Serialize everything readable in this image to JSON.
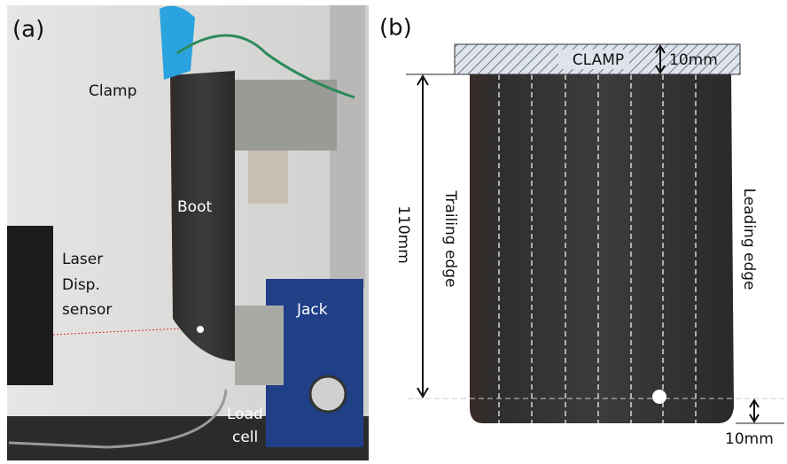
{
  "panel_a": {
    "label": "(a)",
    "clamp": "Clamp",
    "boot": "Boot",
    "laser": [
      "Laser",
      "Disp.",
      "sensor"
    ],
    "jack": "Jack",
    "load_cell": [
      "Load",
      "cell"
    ]
  },
  "panel_b": {
    "label": "(b)",
    "clamp": "CLAMP",
    "clamp_width": "10mm",
    "length": "110mm",
    "trailing_edge": "Trailing edge",
    "leading_edge": "Leading edge",
    "bottom_margin": "10mm"
  }
}
